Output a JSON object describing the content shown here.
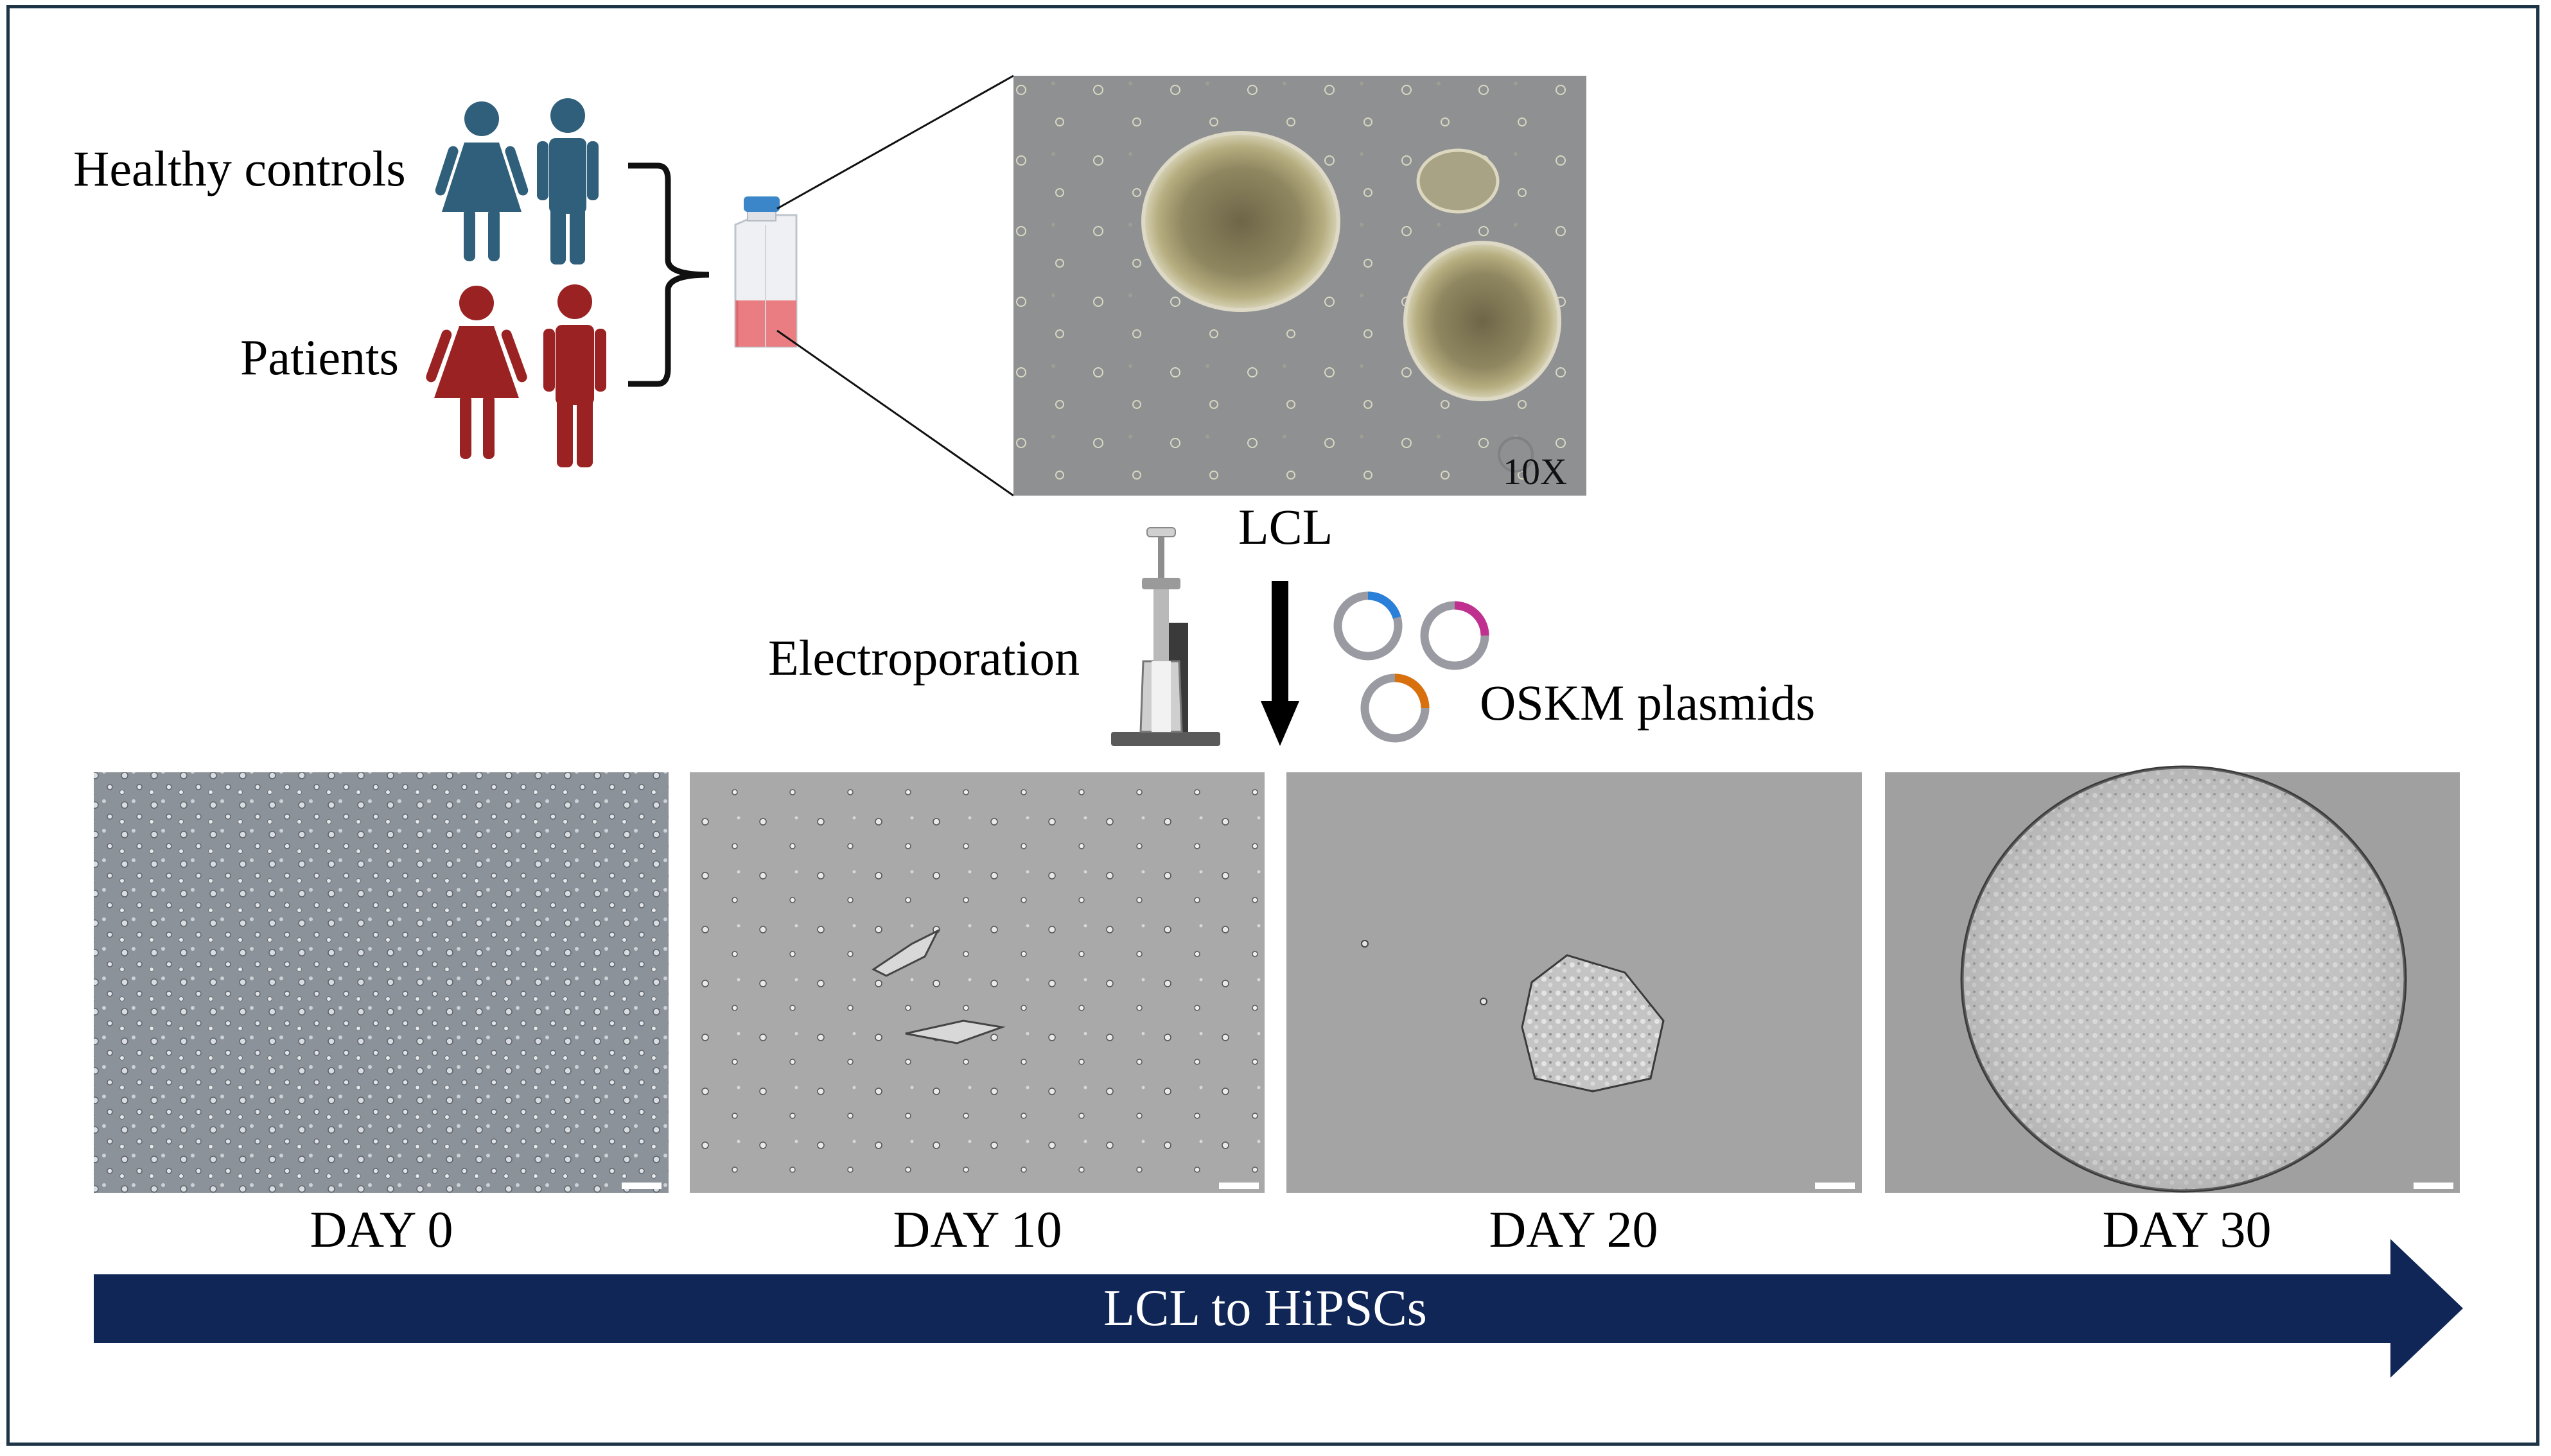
{
  "labels": {
    "healthy_controls": "Healthy controls",
    "patients": "Patients",
    "lcl": "LCL",
    "magnification": "10X",
    "electroporation": "Electroporation",
    "oskm_plasmids": "OSKM plasmids",
    "timeline": "LCL to HiPSCs"
  },
  "days": [
    "DAY 0",
    "DAY 10",
    "DAY 20",
    "DAY 30"
  ],
  "colors": {
    "healthy": "#2f5f7a",
    "patient": "#9b2222",
    "timeline_arrow": "#0f2656",
    "frame": "#1e3447",
    "plasmid_ring": "#9a9aa2",
    "plasmid_blue": "#2a7fd8",
    "plasmid_magenta": "#c0308f",
    "plasmid_orange": "#d9700e"
  },
  "icons": [
    "female-person-icon",
    "male-person-icon",
    "culture-flask-icon",
    "electroporator-icon",
    "plasmid-icon"
  ]
}
